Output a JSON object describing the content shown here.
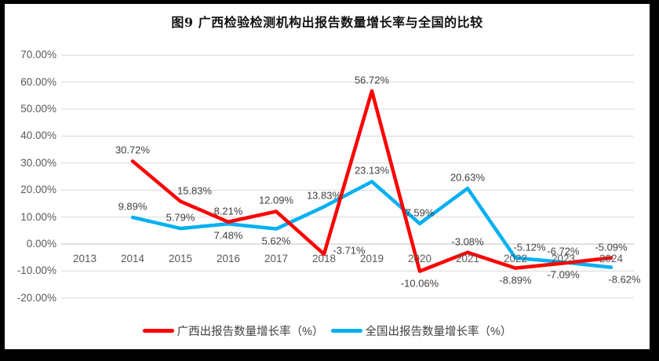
{
  "frame": {
    "background": "#000000",
    "chart_background": "#FFFFFF"
  },
  "chart_data": {
    "type": "line",
    "title": "图9 广西检验检测机构出报告数量增长率与全国的比较",
    "categories": [
      "2013",
      "2014",
      "2015",
      "2016",
      "2017",
      "2018",
      "2019",
      "2020",
      "2021",
      "2022",
      "2023",
      "2024"
    ],
    "series": [
      {
        "name": "广西出报告数量增长率（%）",
        "color": "#FF0000",
        "values": [
          null,
          30.72,
          15.83,
          8.21,
          12.09,
          -3.71,
          56.72,
          -10.06,
          -3.08,
          -8.89,
          -7.09,
          -5.09
        ],
        "labels": [
          null,
          "30.72%",
          "15.83%",
          "8.21%",
          "12.09%",
          "-3.71%",
          "56.72%",
          "-10.06%",
          "-3.08%",
          "-8.89%",
          "-7.09%",
          "-5.09%"
        ],
        "label_sides": [
          null,
          "above",
          "above-right",
          "above",
          "above",
          "right",
          "above",
          "below",
          "above",
          "below",
          "below",
          "above"
        ]
      },
      {
        "name": "全国出报告数量增长率（%）",
        "color": "#00B0F0",
        "values": [
          null,
          9.89,
          5.79,
          7.48,
          5.62,
          13.83,
          23.13,
          7.59,
          20.63,
          -5.12,
          -6.72,
          -8.62
        ],
        "labels": [
          null,
          "9.89%",
          "5.79%",
          "7.48%",
          "5.62%",
          "13.83%",
          "23.13%",
          "7.59%",
          "20.63%",
          "-5.12%",
          "-6.72%",
          "-8.62%"
        ],
        "label_sides": [
          null,
          "above",
          "above",
          "below",
          "below",
          "above",
          "above",
          "above",
          "above",
          "above-right",
          "above",
          "below-right"
        ]
      }
    ],
    "y_axis": {
      "min": -20,
      "max": 70,
      "step": 10,
      "tick_values": [
        70,
        60,
        50,
        40,
        30,
        20,
        10,
        0,
        -10,
        -20
      ],
      "tick_labels": [
        "70.00%",
        "60.00%",
        "50.00%",
        "40.00%",
        "30.00%",
        "20.00%",
        "10.00%",
        "0.00%",
        "-10.00%",
        "-20.00%"
      ]
    },
    "grid": true,
    "legend_position": "bottom",
    "colors": {
      "gridline": "#D9D9D9",
      "axis_line": "#C0C0C0",
      "tick_text": "#595959",
      "data_label_text": "#404040"
    }
  }
}
